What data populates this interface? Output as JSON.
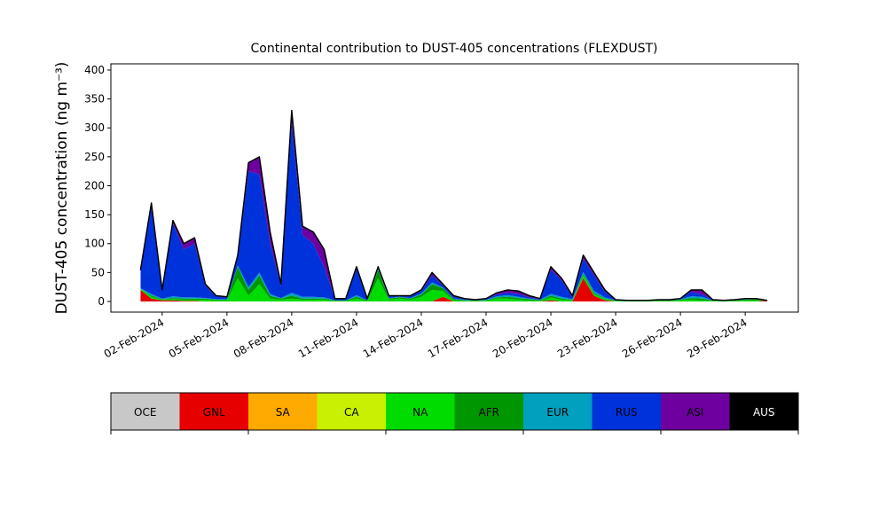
{
  "chart_data": {
    "type": "stacked-area",
    "title": "Continental contribution to DUST-405 concentrations (FLEXDUST)",
    "y_label": "DUST-405 concentration (ng m⁻³)",
    "x": [
      "2024-02-01T00:00",
      "2024-02-01T12:00",
      "2024-02-02T00:00",
      "2024-02-02T12:00",
      "2024-02-03T00:00",
      "2024-02-03T12:00",
      "2024-02-04T00:00",
      "2024-02-04T12:00",
      "2024-02-05T00:00",
      "2024-02-05T12:00",
      "2024-02-06T00:00",
      "2024-02-06T12:00",
      "2024-02-07T00:00",
      "2024-02-07T12:00",
      "2024-02-08T00:00",
      "2024-02-08T12:00",
      "2024-02-09T00:00",
      "2024-02-09T12:00",
      "2024-02-10T00:00",
      "2024-02-10T12:00",
      "2024-02-11T00:00",
      "2024-02-11T12:00",
      "2024-02-12T00:00",
      "2024-02-12T12:00",
      "2024-02-13T00:00",
      "2024-02-13T12:00",
      "2024-02-14T00:00",
      "2024-02-14T12:00",
      "2024-02-15T00:00",
      "2024-02-15T12:00",
      "2024-02-16T00:00",
      "2024-02-16T12:00",
      "2024-02-17T00:00",
      "2024-02-17T12:00",
      "2024-02-18T00:00",
      "2024-02-18T12:00",
      "2024-02-19T00:00",
      "2024-02-19T12:00",
      "2024-02-20T00:00",
      "2024-02-20T12:00",
      "2024-02-21T00:00",
      "2024-02-21T12:00",
      "2024-02-22T00:00",
      "2024-02-22T12:00",
      "2024-02-23T00:00",
      "2024-02-23T12:00",
      "2024-02-24T00:00",
      "2024-02-24T12:00",
      "2024-02-25T00:00",
      "2024-02-25T12:00",
      "2024-02-26T00:00",
      "2024-02-26T12:00",
      "2024-02-27T00:00",
      "2024-02-27T12:00",
      "2024-02-28T00:00",
      "2024-02-28T12:00",
      "2024-02-29T00:00",
      "2024-02-29T12:00",
      "2024-03-01T00:00"
    ],
    "series": [
      {
        "name": "OCE",
        "color": "#c8c8c8",
        "values": [
          0,
          0,
          0,
          0,
          0,
          0,
          0,
          0,
          0,
          0,
          0,
          0,
          0,
          0,
          0,
          0,
          0,
          0,
          0,
          0,
          0,
          0,
          0,
          0,
          0,
          0,
          0,
          0,
          0,
          0,
          0,
          0,
          0,
          0,
          0,
          0,
          0,
          0,
          0,
          0,
          0,
          0,
          0,
          0,
          0,
          0,
          0,
          0,
          0,
          0,
          0,
          0,
          0,
          0,
          0,
          0,
          0,
          0,
          0
        ]
      },
      {
        "name": "GNL",
        "color": "#e60000",
        "values": [
          20,
          5,
          2,
          2,
          1,
          1,
          0,
          0,
          0,
          0,
          0,
          0,
          0,
          0,
          0,
          0,
          0,
          0,
          0,
          0,
          0,
          0,
          0,
          0,
          0,
          0,
          0,
          0,
          8,
          0,
          0,
          0,
          0,
          0,
          0,
          0,
          0,
          0,
          2,
          0,
          0,
          40,
          10,
          2,
          0,
          0,
          0,
          0,
          0,
          0,
          0,
          0,
          0,
          0,
          0,
          0,
          0,
          0,
          2
        ]
      },
      {
        "name": "SA",
        "color": "#ffaa00",
        "values": [
          0,
          0,
          0,
          0,
          0,
          0,
          0,
          0,
          0,
          0,
          0,
          0,
          0,
          0,
          0,
          0,
          0,
          0,
          0,
          0,
          0,
          0,
          0,
          0,
          0,
          0,
          0,
          0,
          0,
          0,
          0,
          0,
          0,
          0,
          0,
          0,
          0,
          0,
          0,
          0,
          0,
          0,
          0,
          0,
          0,
          0,
          0,
          0,
          0,
          0,
          0,
          0,
          0,
          0,
          0,
          0,
          0,
          0,
          0
        ]
      },
      {
        "name": "CA",
        "color": "#c8f000",
        "values": [
          0,
          0,
          0,
          0,
          0,
          0,
          0,
          0,
          0,
          0,
          0,
          0,
          0,
          0,
          0,
          0,
          0,
          0,
          0,
          0,
          0,
          0,
          0,
          0,
          0,
          0,
          0,
          0,
          0,
          0,
          0,
          0,
          0,
          0,
          0,
          0,
          0,
          0,
          0,
          0,
          0,
          0,
          0,
          0,
          0,
          0,
          0,
          0,
          0,
          0,
          0,
          0,
          0,
          0,
          0,
          0,
          0,
          0,
          0
        ]
      },
      {
        "name": "NA",
        "color": "#00dc00",
        "values": [
          2,
          3,
          1,
          2,
          2,
          2,
          3,
          2,
          2,
          40,
          10,
          30,
          5,
          3,
          5,
          3,
          3,
          3,
          1,
          1,
          5,
          1,
          40,
          3,
          5,
          3,
          8,
          20,
          10,
          2,
          1,
          1,
          1,
          5,
          5,
          3,
          2,
          1,
          5,
          3,
          2,
          5,
          3,
          2,
          1,
          1,
          1,
          1,
          1,
          1,
          2,
          3,
          2,
          1,
          1,
          1,
          2,
          2,
          0
        ]
      },
      {
        "name": "AFR",
        "color": "#009600",
        "values": [
          0,
          2,
          1,
          2,
          2,
          2,
          2,
          1,
          1,
          20,
          10,
          15,
          5,
          2,
          5,
          2,
          2,
          2,
          1,
          1,
          3,
          1,
          15,
          2,
          2,
          2,
          4,
          10,
          5,
          2,
          1,
          1,
          1,
          2,
          3,
          3,
          2,
          1,
          3,
          2,
          1,
          3,
          2,
          1,
          1,
          0,
          0,
          0,
          1,
          1,
          1,
          3,
          3,
          1,
          0,
          1,
          1,
          2,
          0
        ]
      },
      {
        "name": "EUR",
        "color": "#00a0be",
        "values": [
          1,
          3,
          1,
          3,
          2,
          2,
          1,
          1,
          1,
          2,
          5,
          5,
          3,
          1,
          5,
          3,
          3,
          2,
          0,
          0,
          3,
          0,
          2,
          1,
          1,
          1,
          2,
          3,
          1,
          1,
          1,
          0,
          1,
          2,
          3,
          2,
          1,
          1,
          3,
          3,
          1,
          3,
          3,
          2,
          0,
          0,
          0,
          0,
          0,
          0,
          1,
          3,
          3,
          0,
          0,
          0,
          1,
          0,
          0
        ]
      },
      {
        "name": "RUS",
        "color": "#0032dc",
        "values": [
          30,
          152,
          14,
          126,
          83,
          93,
          21,
          5,
          3,
          15,
          200,
          170,
          87,
          21,
          295,
          107,
          92,
          53,
          2,
          2,
          45,
          2,
          2,
          3,
          1,
          3,
          4,
          12,
          4,
          3,
          1,
          1,
          1,
          3,
          4,
          5,
          2,
          1,
          42,
          28,
          4,
          23,
          27,
          10,
          1,
          1,
          1,
          1,
          1,
          1,
          1,
          8,
          4,
          1,
          1,
          1,
          1,
          1,
          0
        ]
      },
      {
        "name": "ASI",
        "color": "#6e00a0",
        "values": [
          2,
          5,
          1,
          5,
          10,
          10,
          3,
          1,
          1,
          3,
          15,
          30,
          20,
          3,
          20,
          15,
          20,
          30,
          1,
          1,
          4,
          1,
          1,
          1,
          1,
          1,
          2,
          5,
          2,
          2,
          1,
          0,
          1,
          3,
          5,
          5,
          3,
          1,
          5,
          4,
          2,
          6,
          5,
          3,
          0,
          0,
          0,
          0,
          0,
          0,
          0,
          3,
          8,
          0,
          0,
          0,
          0,
          0,
          0
        ]
      },
      {
        "name": "AUS",
        "color": "#000000",
        "values": [
          0,
          0,
          0,
          0,
          0,
          0,
          0,
          0,
          0,
          0,
          0,
          0,
          0,
          0,
          0,
          0,
          0,
          0,
          0,
          0,
          0,
          0,
          0,
          0,
          0,
          0,
          0,
          0,
          0,
          0,
          0,
          0,
          0,
          0,
          0,
          0,
          0,
          0,
          0,
          0,
          0,
          0,
          0,
          0,
          0,
          0,
          0,
          0,
          0,
          0,
          0,
          0,
          0,
          0,
          0,
          0,
          0,
          0,
          0
        ]
      }
    ],
    "xlim": [
      "2024-01-30T15:00",
      "2024-03-02T11:00"
    ],
    "xticks": [
      {
        "value": "2024-02-02T00:00",
        "label": "02-Feb-2024"
      },
      {
        "value": "2024-02-05T00:00",
        "label": "05-Feb-2024"
      },
      {
        "value": "2024-02-08T00:00",
        "label": "08-Feb-2024"
      },
      {
        "value": "2024-02-11T00:00",
        "label": "11-Feb-2024"
      },
      {
        "value": "2024-02-14T00:00",
        "label": "14-Feb-2024"
      },
      {
        "value": "2024-02-17T00:00",
        "label": "17-Feb-2024"
      },
      {
        "value": "2024-02-20T00:00",
        "label": "20-Feb-2024"
      },
      {
        "value": "2024-02-23T00:00",
        "label": "23-Feb-2024"
      },
      {
        "value": "2024-02-26T00:00",
        "label": "26-Feb-2024"
      },
      {
        "value": "2024-02-29T00:00",
        "label": "29-Feb-2024"
      }
    ],
    "ylim": [
      -18.4,
      410.7
    ],
    "yticks": [
      0,
      50,
      100,
      150,
      200,
      250,
      300,
      350,
      400
    ],
    "legend": "colorbar-below"
  }
}
